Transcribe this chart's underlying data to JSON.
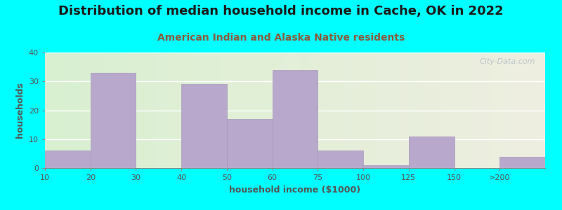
{
  "title": "Distribution of median household income in Cache, OK in 2022",
  "subtitle": "American Indian and Alaska Native residents",
  "xlabel": "household income ($1000)",
  "ylabel": "households",
  "background_outer": "#00FFFF",
  "background_inner_left": "#d8efd0",
  "background_inner_right": "#eeeee0",
  "bar_color": "#b8a8cc",
  "bar_edge_color": "#a898bc",
  "categories": [
    "10",
    "20",
    "30",
    "40",
    "50",
    "60",
    "75",
    "100",
    "125",
    "150",
    ">200"
  ],
  "values": [
    6,
    33,
    0,
    29,
    17,
    34,
    6,
    1,
    11,
    0,
    4
  ],
  "ylim": [
    0,
    40
  ],
  "yticks": [
    0,
    10,
    20,
    30,
    40
  ],
  "title_fontsize": 13,
  "subtitle_fontsize": 10,
  "axis_label_fontsize": 9,
  "tick_fontsize": 8,
  "title_color": "#1a1a1a",
  "subtitle_color": "#8b5a3c",
  "watermark": "City-Data.com"
}
